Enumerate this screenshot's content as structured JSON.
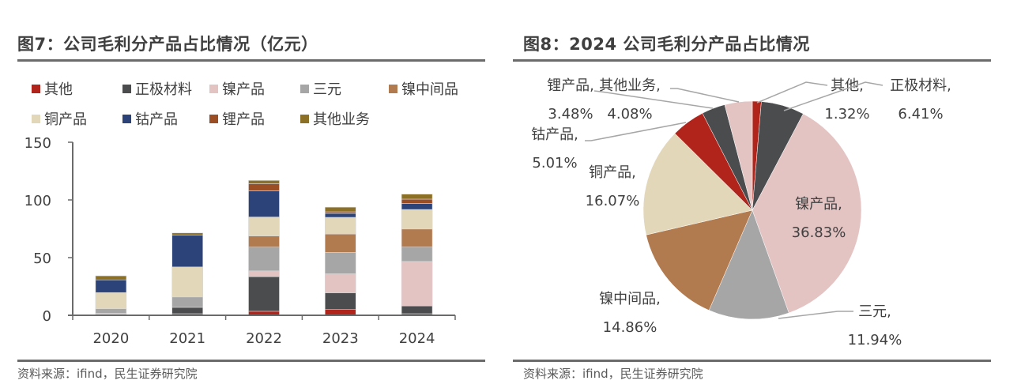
{
  "left": {
    "title": "图7：公司毛利分产品占比情况（亿元）",
    "source": "资料来源：ifind，民生证券研究院"
  },
  "right": {
    "title": "图8：2024 公司毛利分产品占比情况",
    "source": "资料来源：ifind，民生证券研究院"
  },
  "chart_data": [
    {
      "type": "bar",
      "stacked": true,
      "title": "图7：公司毛利分产品占比情况（亿元）",
      "xlabel": "",
      "ylabel": "",
      "categories": [
        "2020",
        "2021",
        "2022",
        "2023",
        "2024"
      ],
      "ylim": [
        0,
        150
      ],
      "yticks": [
        0,
        50,
        100,
        150
      ],
      "grid": false,
      "legend_position": "top",
      "series": [
        {
          "name": "其他",
          "color": "#B0241B",
          "values": [
            0.3,
            1.4,
            3.5,
            5.0,
            1.4
          ]
        },
        {
          "name": "正极材料",
          "color": "#4B4C4E",
          "values": [
            0,
            5.5,
            30.0,
            14.5,
            6.7
          ]
        },
        {
          "name": "镍产品",
          "color": "#E4C3C3",
          "values": [
            1.4,
            0,
            5.0,
            16.5,
            38.6
          ]
        },
        {
          "name": "三元",
          "color": "#A6A6A6",
          "values": [
            4.0,
            9.0,
            20.6,
            18.6,
            12.5
          ]
        },
        {
          "name": "镍中间品",
          "color": "#B27A4F",
          "values": [
            0,
            0,
            9.6,
            15.8,
            15.6
          ]
        },
        {
          "name": "铜产品",
          "color": "#E3D7B9",
          "values": [
            14.0,
            26.0,
            16.5,
            14.5,
            16.9
          ]
        },
        {
          "name": "钴产品",
          "color": "#2C437A",
          "values": [
            11.0,
            27.5,
            22.7,
            3.4,
            5.3
          ]
        },
        {
          "name": "锂产品",
          "color": "#9B4E24",
          "values": [
            0,
            0,
            6.2,
            1.4,
            3.7
          ]
        },
        {
          "name": "其他业务",
          "color": "#8B7026",
          "values": [
            3.5,
            2.0,
            2.8,
            4.0,
            4.3
          ]
        }
      ]
    },
    {
      "type": "pie",
      "title": "图8：2024 公司毛利分产品占比情况",
      "slices": [
        {
          "name": "其他",
          "label": "其他,",
          "value": 1.32,
          "pct": "1.32%",
          "color": "#B0241B"
        },
        {
          "name": "正极材料",
          "label": "正极材料,",
          "value": 6.41,
          "pct": "6.41%",
          "color": "#4B4C4E"
        },
        {
          "name": "镍产品",
          "label": "镍产品,",
          "value": 36.83,
          "pct": "36.83%",
          "color": "#E4C3C3"
        },
        {
          "name": "三元",
          "label": "三元,",
          "value": 11.94,
          "pct": "11.94%",
          "color": "#A6A6A6"
        },
        {
          "name": "镍中间品",
          "label": "镍中间品,",
          "value": 14.86,
          "pct": "14.86%",
          "color": "#B27A4F"
        },
        {
          "name": "铜产品",
          "label": "铜产品,",
          "value": 16.07,
          "pct": "16.07%",
          "color": "#E3D7B9"
        },
        {
          "name": "钴产品",
          "label": "钴产品,",
          "value": 5.01,
          "pct": "5.01%",
          "color": "#B0241B"
        },
        {
          "name": "锂产品",
          "label": "锂产品,",
          "value": 3.48,
          "pct": "3.48%",
          "color": "#4B4C4E"
        },
        {
          "name": "其他业务",
          "label": "其他业务,",
          "value": 4.08,
          "pct": "4.08%",
          "color": "#E4C3C3"
        }
      ]
    }
  ]
}
